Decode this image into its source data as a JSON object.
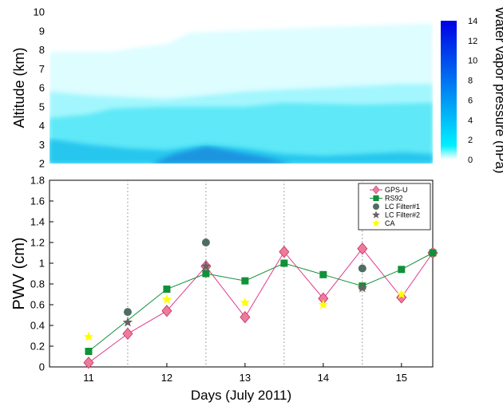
{
  "chart_data": [
    {
      "type": "heatmap",
      "ylabel": "Altitude (km)",
      "ylim": [
        2,
        10
      ],
      "yticks": [
        2,
        3,
        4,
        5,
        6,
        7,
        8,
        9,
        10
      ],
      "xlim": [
        10.5,
        15.4
      ],
      "grid": false,
      "colorbar": {
        "label": "Water vapor pressure (hPa)",
        "range": [
          0,
          14
        ],
        "ticks": [
          0,
          2,
          4,
          6,
          8,
          10,
          12,
          14
        ],
        "colors": [
          "#ffffff",
          "#00f0ff",
          "#0000e6"
        ]
      },
      "contours": [
        {
          "level": 0.5,
          "color": "#ddfdff",
          "top": [
            [
              10.5,
              7.9
            ],
            [
              11.3,
              7.9
            ],
            [
              11.6,
              8.1
            ],
            [
              12.0,
              8.3
            ],
            [
              12.3,
              8.9
            ],
            [
              14.0,
              9.2
            ],
            [
              15.4,
              9.4
            ]
          ]
        },
        {
          "level": 2,
          "color": "#a3f6fd",
          "top": [
            [
              10.5,
              5.8
            ],
            [
              11.0,
              5.6
            ],
            [
              12.0,
              5.4
            ],
            [
              13.0,
              5.8
            ],
            [
              14.0,
              6.0
            ],
            [
              15.0,
              6.2
            ],
            [
              15.4,
              6.2
            ]
          ]
        },
        {
          "level": 3,
          "color": "#5fe8f7",
          "top": [
            [
              10.5,
              4.4
            ],
            [
              11.0,
              4.6
            ],
            [
              11.3,
              4.9
            ],
            [
              12.0,
              5.0
            ],
            [
              13.0,
              5.0
            ],
            [
              13.5,
              5.2
            ],
            [
              14.5,
              5.1
            ],
            [
              15.4,
              5.2
            ]
          ]
        },
        {
          "level": 5,
          "color": "#26c6ee",
          "top": [
            [
              10.5,
              3.3
            ],
            [
              11.0,
              3.0
            ],
            [
              11.5,
              2.8
            ],
            [
              12.0,
              2.7
            ],
            [
              12.5,
              3.0
            ],
            [
              13.0,
              2.8
            ],
            [
              13.5,
              2.5
            ],
            [
              14.0,
              2.4
            ],
            [
              15.0,
              2.6
            ],
            [
              15.4,
              2.5
            ]
          ]
        },
        {
          "level": 7,
          "color": "#1b94e0",
          "top": [
            [
              11.8,
              2.0
            ],
            [
              12.1,
              2.5
            ],
            [
              12.5,
              2.9
            ],
            [
              12.9,
              2.6
            ],
            [
              13.3,
              2.3
            ],
            [
              13.6,
              2.0
            ]
          ]
        }
      ]
    },
    {
      "type": "line",
      "xlabel": "Days (July 2011)",
      "ylabel": "PWV (cm)",
      "xlim": [
        10.5,
        15.4
      ],
      "ylim": [
        0,
        1.8
      ],
      "xticks": [
        11,
        12,
        13,
        14,
        15
      ],
      "yticks": [
        0,
        0.2,
        0.4,
        0.6,
        0.8,
        1,
        1.2,
        1.4,
        1.6,
        1.8
      ],
      "vlines": [
        11.5,
        12.5,
        13.5,
        14.5
      ],
      "legend_position": "top-right",
      "series": [
        {
          "name": "GPS-U",
          "marker": "diamond",
          "color": "#ee7b9c",
          "line": "#e23a8f",
          "x": [
            11,
            11.5,
            12,
            12.5,
            13,
            13.5,
            14,
            14.5,
            15,
            15.4
          ],
          "y": [
            0.04,
            0.32,
            0.54,
            0.97,
            0.48,
            1.11,
            0.66,
            1.14,
            0.67,
            1.1
          ]
        },
        {
          "name": "RS92",
          "marker": "square",
          "color": "#119138",
          "line": "#119138",
          "x": [
            11,
            12,
            12.5,
            13,
            13.5,
            14,
            14.5,
            15,
            15.4
          ],
          "y": [
            0.15,
            0.75,
            0.9,
            0.83,
            1.0,
            0.89,
            0.78,
            0.94,
            1.1
          ]
        },
        {
          "name": "LC Filter#1",
          "marker": "circle",
          "color": "#4f6e63",
          "line": null,
          "x": [
            11.5,
            12.5,
            14.5
          ],
          "y": [
            0.53,
            1.2,
            0.95
          ]
        },
        {
          "name": "LC Filter#2",
          "marker": "star",
          "color": "#6c6064",
          "line": null,
          "x": [
            11.5,
            12.5,
            14.5
          ],
          "y": [
            0.43,
            0.97,
            0.76
          ]
        },
        {
          "name": "CA",
          "marker": "star",
          "color": "#ffff00",
          "line": null,
          "x": [
            11,
            12,
            13,
            14,
            15
          ],
          "y": [
            0.29,
            0.65,
            0.62,
            0.6,
            0.7
          ]
        }
      ]
    }
  ]
}
